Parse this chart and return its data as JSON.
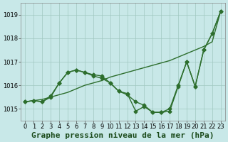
{
  "line_zigzag": [
    1015.3,
    1015.35,
    1015.3,
    1015.5,
    1016.1,
    1016.55,
    1016.65,
    1016.55,
    1016.45,
    1016.4,
    1016.1,
    1015.75,
    1015.65,
    1014.9,
    1015.1,
    1014.85,
    1014.85,
    1014.9,
    1015.95,
    1017.0,
    1015.95,
    1017.5,
    1018.2,
    1019.15
  ],
  "line_hump": [
    1015.3,
    1015.35,
    1015.3,
    1015.55,
    1016.1,
    1016.55,
    1016.65,
    1016.55,
    1016.4,
    1016.3,
    1016.1,
    1015.75,
    1015.6,
    1015.3,
    1015.15,
    1014.85,
    1014.85,
    1015.0,
    1016.0,
    1017.0,
    1015.95,
    1017.5,
    1018.2,
    1019.15
  ],
  "line_diagonal": [
    1015.3,
    1015.35,
    1015.4,
    1015.5,
    1015.6,
    1015.7,
    1015.85,
    1016.0,
    1016.1,
    1016.2,
    1016.35,
    1016.45,
    1016.55,
    1016.65,
    1016.75,
    1016.85,
    1016.95,
    1017.05,
    1017.2,
    1017.35,
    1017.5,
    1017.65,
    1017.85,
    1019.15
  ],
  "x": [
    0,
    1,
    2,
    3,
    4,
    5,
    6,
    7,
    8,
    9,
    10,
    11,
    12,
    13,
    14,
    15,
    16,
    17,
    18,
    19,
    20,
    21,
    22,
    23
  ],
  "line_color": "#2d6e2d",
  "bg_color": "#c8e8e8",
  "xlabel": "Graphe pression niveau de la mer (hPa)",
  "ylim": [
    1014.5,
    1019.5
  ],
  "xlim": [
    -0.5,
    23.5
  ],
  "yticks": [
    1015,
    1016,
    1017,
    1018,
    1019
  ],
  "xticks": [
    0,
    1,
    2,
    3,
    4,
    5,
    6,
    7,
    8,
    9,
    10,
    11,
    12,
    13,
    14,
    15,
    16,
    17,
    18,
    19,
    20,
    21,
    22,
    23
  ],
  "grid_color": "#a0c8c0",
  "marker": "D",
  "markersize": 2.5,
  "linewidth": 1.0,
  "xlabel_fontsize": 8,
  "tick_fontsize": 6
}
